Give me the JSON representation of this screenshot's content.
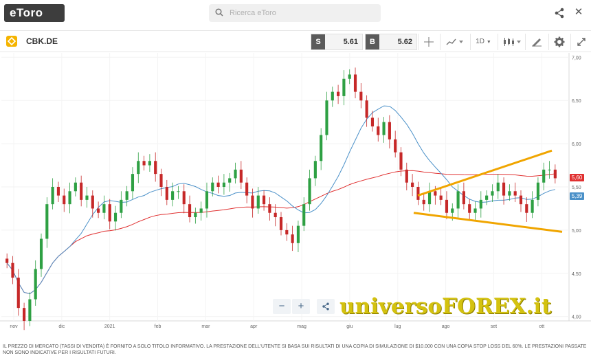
{
  "header": {
    "logo_text": "eToro",
    "search_placeholder": "Ricerca eToro"
  },
  "toolbar": {
    "symbol": "CBK.DE",
    "sell_tag": "S",
    "sell_value": "5.61",
    "buy_tag": "B",
    "buy_value": "5.62",
    "interval": "1D"
  },
  "chart_data": {
    "type": "candlestick",
    "y_ticks": [
      "7,00",
      "6,50",
      "6,00",
      "5,50",
      "5,00",
      "4,50",
      "4,00"
    ],
    "ylim": [
      3.95,
      7.05
    ],
    "x_ticks": [
      "nov",
      "dic",
      "2021",
      "feb",
      "mar",
      "apr",
      "mag",
      "giu",
      "lug",
      "ago",
      "set",
      "ott"
    ],
    "price_labels": {
      "last": "5,60",
      "ma_blue": "5,39"
    },
    "colors": {
      "up": "#2ea043",
      "down": "#c62828",
      "ma_short": "#4a90c8",
      "ma_long": "#e03030",
      "trendline": "#f0a500",
      "label_red": "#e03030",
      "label_blue": "#4a90c8"
    },
    "closes": [
      4.62,
      4.45,
      4.1,
      3.95,
      4.2,
      4.55,
      4.9,
      5.3,
      5.5,
      5.4,
      5.3,
      5.45,
      5.55,
      5.35,
      5.4,
      5.25,
      5.2,
      5.3,
      5.1,
      5.2,
      5.35,
      5.45,
      5.65,
      5.8,
      5.75,
      5.8,
      5.65,
      5.5,
      5.35,
      5.45,
      5.45,
      5.3,
      5.15,
      5.2,
      5.25,
      5.45,
      5.55,
      5.5,
      5.55,
      5.6,
      5.7,
      5.55,
      5.4,
      5.25,
      5.4,
      5.3,
      5.2,
      5.15,
      5.0,
      4.95,
      4.85,
      5.05,
      5.3,
      5.6,
      5.8,
      6.1,
      6.5,
      6.6,
      6.55,
      6.75,
      6.8,
      6.6,
      6.5,
      6.3,
      6.2,
      6.1,
      6.25,
      6.05,
      5.9,
      5.7,
      5.55,
      5.5,
      5.35,
      5.3,
      5.45,
      5.4,
      5.35,
      5.2,
      5.25,
      5.45,
      5.3,
      5.2,
      5.25,
      5.35,
      5.4,
      5.45,
      5.55,
      5.4,
      5.45,
      5.4,
      5.3,
      5.2,
      5.35,
      5.55,
      5.7,
      5.7,
      5.6
    ]
  },
  "chart_toolbar": {
    "zoom_out": "−",
    "zoom_in": "+"
  },
  "watermark": "universoFOREX.it",
  "footer": {
    "disclaimer": "IL PREZZO DI MERCATO (TASSI DI VENDITA) È FORNITO A SOLO TITOLO INFORMATIVO. LA PRESTAZIONE DELL'UTENTE SI BASA SUI RISULTATI DI UNA COPIA DI SIMULAZIONE DI $10.000 CON UNA COPIA STOP LOSS DEL 60%. LE PRESTAZIONI PASSATE NON SONO INDICATIVE PER I RISULTATI FUTURI."
  }
}
